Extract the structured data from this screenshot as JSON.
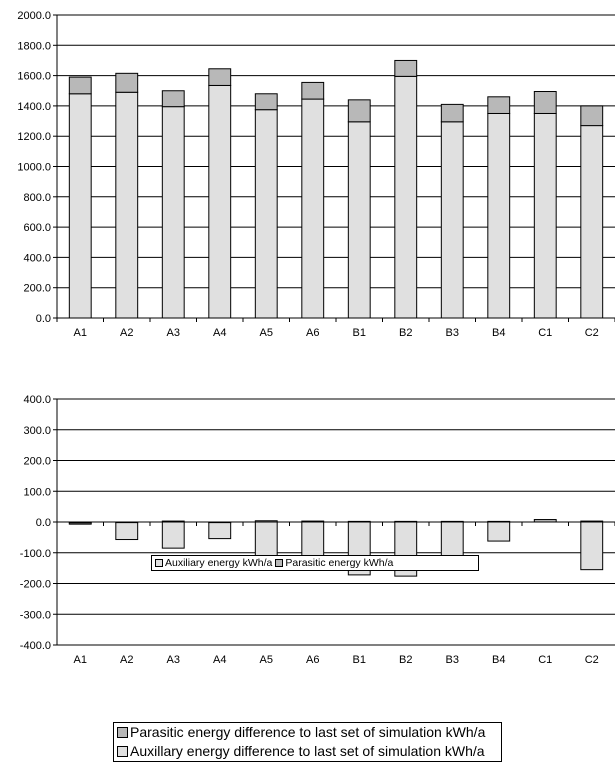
{
  "colors": {
    "auxiliary": "#e0e0e0",
    "parasitic": "#b8b8b8",
    "axis": "#000000"
  },
  "chart_data": [
    {
      "type": "bar",
      "stacked": true,
      "title": "",
      "xlabel": "",
      "ylabel": "",
      "categories": [
        "A1",
        "A2",
        "A3",
        "A4",
        "A5",
        "A6",
        "B1",
        "B2",
        "B3",
        "B4",
        "C1",
        "C2"
      ],
      "series": [
        {
          "name": "Auxiliary energy kWh/a",
          "values": [
            1480,
            1490,
            1395,
            1535,
            1375,
            1445,
            1295,
            1595,
            1295,
            1350,
            1350,
            1270
          ]
        },
        {
          "name": "Parasitic energy kWh/a",
          "values": [
            110,
            125,
            105,
            110,
            105,
            110,
            145,
            105,
            115,
            110,
            145,
            130
          ]
        }
      ],
      "ylim": [
        0,
        2000
      ],
      "yticks": [
        "0.0",
        "200.0",
        "400.0",
        "600.0",
        "800.0",
        "1000.0",
        "1200.0",
        "1400.0",
        "1600.0",
        "1800.0",
        "2000.0"
      ],
      "grid": true,
      "legend": "bottom"
    },
    {
      "type": "bar",
      "stacked": true,
      "title": "",
      "xlabel": "",
      "ylabel": "",
      "categories": [
        "A1",
        "A2",
        "A3",
        "A4",
        "A5",
        "A6",
        "B1",
        "B2",
        "B3",
        "B4",
        "C1",
        "C2"
      ],
      "series": [
        {
          "name": "Parasitic energy difference to last set of simulation kWh/a",
          "values": [
            -3,
            -2,
            3,
            -2,
            4,
            3,
            2,
            2,
            2,
            2,
            8,
            3
          ]
        },
        {
          "name": "Auxillary energy difference to last set of simulation kWh/a",
          "values": [
            -4,
            -55,
            -85,
            -52,
            -142,
            -150,
            -172,
            -176,
            -115,
            -62,
            0,
            -155
          ]
        }
      ],
      "ylim": [
        -400,
        400
      ],
      "yticks": [
        "-400.0",
        "-300.0",
        "-200.0",
        "-100.0",
        "0.0",
        "100.0",
        "200.0",
        "300.0",
        "400.0"
      ],
      "grid": true,
      "legend": "bottom"
    }
  ]
}
